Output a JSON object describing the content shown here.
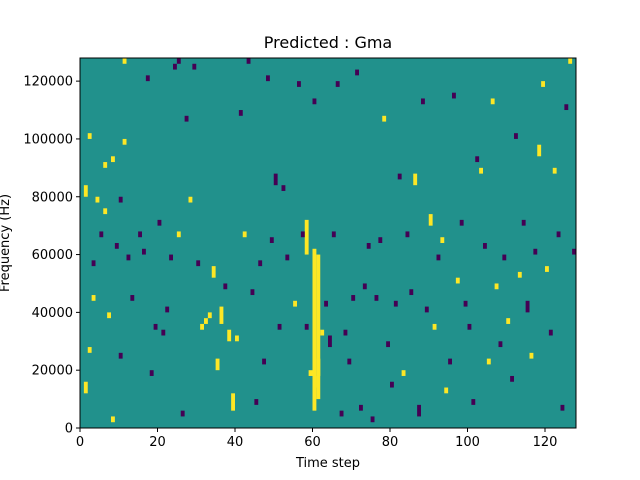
{
  "chart_data": {
    "type": "heatmap",
    "title": "Predicted : Gma",
    "xlabel": "Time step",
    "ylabel": "Frequency (Hz)",
    "xlim": [
      0,
      128
    ],
    "ylim": [
      0,
      128000
    ],
    "xticks": [
      0,
      20,
      40,
      60,
      80,
      100,
      120
    ],
    "yticks": [
      0,
      20000,
      40000,
      60000,
      80000,
      100000,
      120000
    ],
    "grid": false,
    "legend": "none",
    "n_time_steps": 128,
    "n_freq_bins": 64,
    "bin_height_hz": 2000,
    "colors": {
      "background": "#21918c",
      "high": "#fde725",
      "low": "#440154"
    },
    "cells": [
      {
        "t": 1,
        "f": 80000,
        "value": "high",
        "len": 2
      },
      {
        "t": 1,
        "f": 12000,
        "value": "high",
        "len": 2
      },
      {
        "t": 2,
        "f": 100000,
        "value": "high"
      },
      {
        "t": 2,
        "f": 26000,
        "value": "high"
      },
      {
        "t": 3,
        "f": 56000,
        "value": "low"
      },
      {
        "t": 3,
        "f": 44000,
        "value": "high"
      },
      {
        "t": 4,
        "f": 78000,
        "value": "high"
      },
      {
        "t": 5,
        "f": 66000,
        "value": "low"
      },
      {
        "t": 6,
        "f": 90000,
        "value": "high"
      },
      {
        "t": 6,
        "f": 74000,
        "value": "high"
      },
      {
        "t": 7,
        "f": 38000,
        "value": "high"
      },
      {
        "t": 8,
        "f": 92000,
        "value": "high"
      },
      {
        "t": 8,
        "f": 2000,
        "value": "high"
      },
      {
        "t": 9,
        "f": 62000,
        "value": "low"
      },
      {
        "t": 10,
        "f": 78000,
        "value": "low"
      },
      {
        "t": 10,
        "f": 24000,
        "value": "low"
      },
      {
        "t": 11,
        "f": 126000,
        "value": "high"
      },
      {
        "t": 11,
        "f": 98000,
        "value": "high"
      },
      {
        "t": 12,
        "f": 58000,
        "value": "low"
      },
      {
        "t": 13,
        "f": 44000,
        "value": "low"
      },
      {
        "t": 15,
        "f": 66000,
        "value": "low"
      },
      {
        "t": 16,
        "f": 60000,
        "value": "low"
      },
      {
        "t": 17,
        "f": 120000,
        "value": "low"
      },
      {
        "t": 18,
        "f": 18000,
        "value": "low"
      },
      {
        "t": 19,
        "f": 34000,
        "value": "low"
      },
      {
        "t": 20,
        "f": 70000,
        "value": "low"
      },
      {
        "t": 21,
        "f": 32000,
        "value": "low"
      },
      {
        "t": 22,
        "f": 40000,
        "value": "low"
      },
      {
        "t": 23,
        "f": 58000,
        "value": "low"
      },
      {
        "t": 24,
        "f": 124000,
        "value": "low"
      },
      {
        "t": 25,
        "f": 126000,
        "value": "low"
      },
      {
        "t": 25,
        "f": 66000,
        "value": "high"
      },
      {
        "t": 26,
        "f": 4000,
        "value": "low"
      },
      {
        "t": 27,
        "f": 106000,
        "value": "low"
      },
      {
        "t": 28,
        "f": 78000,
        "value": "high"
      },
      {
        "t": 29,
        "f": 124000,
        "value": "low"
      },
      {
        "t": 30,
        "f": 56000,
        "value": "low"
      },
      {
        "t": 31,
        "f": 34000,
        "value": "high"
      },
      {
        "t": 32,
        "f": 36000,
        "value": "high"
      },
      {
        "t": 33,
        "f": 38000,
        "value": "high"
      },
      {
        "t": 34,
        "f": 52000,
        "value": "high",
        "len": 2
      },
      {
        "t": 35,
        "f": 20000,
        "value": "high",
        "len": 2
      },
      {
        "t": 36,
        "f": 36000,
        "value": "high",
        "len": 3
      },
      {
        "t": 37,
        "f": 48000,
        "value": "low"
      },
      {
        "t": 38,
        "f": 30000,
        "value": "high",
        "len": 2
      },
      {
        "t": 39,
        "f": 6000,
        "value": "high",
        "len": 3
      },
      {
        "t": 40,
        "f": 30000,
        "value": "high"
      },
      {
        "t": 41,
        "f": 108000,
        "value": "low"
      },
      {
        "t": 42,
        "f": 66000,
        "value": "high"
      },
      {
        "t": 43,
        "f": 126000,
        "value": "low"
      },
      {
        "t": 44,
        "f": 46000,
        "value": "low"
      },
      {
        "t": 45,
        "f": 8000,
        "value": "low"
      },
      {
        "t": 46,
        "f": 56000,
        "value": "low"
      },
      {
        "t": 47,
        "f": 22000,
        "value": "low"
      },
      {
        "t": 48,
        "f": 120000,
        "value": "low"
      },
      {
        "t": 49,
        "f": 64000,
        "value": "low"
      },
      {
        "t": 50,
        "f": 84000,
        "value": "low",
        "len": 2
      },
      {
        "t": 51,
        "f": 34000,
        "value": "low"
      },
      {
        "t": 52,
        "f": 82000,
        "value": "low"
      },
      {
        "t": 53,
        "f": 58000,
        "value": "low"
      },
      {
        "t": 55,
        "f": 42000,
        "value": "high"
      },
      {
        "t": 56,
        "f": 118000,
        "value": "low"
      },
      {
        "t": 57,
        "f": 66000,
        "value": "low"
      },
      {
        "t": 58,
        "f": 34000,
        "value": "low"
      },
      {
        "t": 59,
        "f": 18000,
        "value": "high"
      },
      {
        "t": 60,
        "f": 112000,
        "value": "low"
      },
      {
        "t": 60,
        "f": 14000,
        "value": "high",
        "len": 2
      },
      {
        "t": 61,
        "f": 18000,
        "value": "high",
        "len": 3
      },
      {
        "t": 62,
        "f": 32000,
        "value": "high"
      },
      {
        "t": 63,
        "f": 42000,
        "value": "low"
      },
      {
        "t": 64,
        "f": 28000,
        "value": "low",
        "len": 2
      },
      {
        "t": 65,
        "f": 66000,
        "value": "low"
      },
      {
        "t": 66,
        "f": 118000,
        "value": "low"
      },
      {
        "t": 67,
        "f": 4000,
        "value": "low"
      },
      {
        "t": 68,
        "f": 32000,
        "value": "low"
      },
      {
        "t": 69,
        "f": 22000,
        "value": "low"
      },
      {
        "t": 70,
        "f": 44000,
        "value": "low"
      },
      {
        "t": 71,
        "f": 122000,
        "value": "low"
      },
      {
        "t": 72,
        "f": 6000,
        "value": "low"
      },
      {
        "t": 73,
        "f": 48000,
        "value": "low"
      },
      {
        "t": 74,
        "f": 62000,
        "value": "low"
      },
      {
        "t": 75,
        "f": 2000,
        "value": "low"
      },
      {
        "t": 76,
        "f": 44000,
        "value": "low"
      },
      {
        "t": 77,
        "f": 64000,
        "value": "low"
      },
      {
        "t": 78,
        "f": 106000,
        "value": "high"
      },
      {
        "t": 79,
        "f": 28000,
        "value": "low"
      },
      {
        "t": 80,
        "f": 14000,
        "value": "low"
      },
      {
        "t": 81,
        "f": 42000,
        "value": "low"
      },
      {
        "t": 82,
        "f": 86000,
        "value": "low"
      },
      {
        "t": 83,
        "f": 18000,
        "value": "high"
      },
      {
        "t": 84,
        "f": 66000,
        "value": "low"
      },
      {
        "t": 85,
        "f": 46000,
        "value": "low"
      },
      {
        "t": 86,
        "f": 84000,
        "value": "high",
        "len": 2
      },
      {
        "t": 87,
        "f": 4000,
        "value": "low",
        "len": 2
      },
      {
        "t": 88,
        "f": 112000,
        "value": "low"
      },
      {
        "t": 89,
        "f": 40000,
        "value": "low"
      },
      {
        "t": 90,
        "f": 70000,
        "value": "high",
        "len": 2
      },
      {
        "t": 91,
        "f": 34000,
        "value": "high"
      },
      {
        "t": 92,
        "f": 58000,
        "value": "low"
      },
      {
        "t": 93,
        "f": 64000,
        "value": "high"
      },
      {
        "t": 94,
        "f": 12000,
        "value": "high"
      },
      {
        "t": 95,
        "f": 22000,
        "value": "low"
      },
      {
        "t": 96,
        "f": 114000,
        "value": "low"
      },
      {
        "t": 97,
        "f": 50000,
        "value": "high"
      },
      {
        "t": 98,
        "f": 70000,
        "value": "low"
      },
      {
        "t": 99,
        "f": 42000,
        "value": "low"
      },
      {
        "t": 100,
        "f": 34000,
        "value": "low"
      },
      {
        "t": 101,
        "f": 8000,
        "value": "low"
      },
      {
        "t": 102,
        "f": 92000,
        "value": "low"
      },
      {
        "t": 103,
        "f": 88000,
        "value": "high"
      },
      {
        "t": 104,
        "f": 62000,
        "value": "low"
      },
      {
        "t": 105,
        "f": 22000,
        "value": "high"
      },
      {
        "t": 106,
        "f": 112000,
        "value": "high"
      },
      {
        "t": 107,
        "f": 48000,
        "value": "high"
      },
      {
        "t": 108,
        "f": 28000,
        "value": "low"
      },
      {
        "t": 109,
        "f": 58000,
        "value": "low"
      },
      {
        "t": 110,
        "f": 36000,
        "value": "high"
      },
      {
        "t": 111,
        "f": 16000,
        "value": "low"
      },
      {
        "t": 112,
        "f": 100000,
        "value": "low"
      },
      {
        "t": 113,
        "f": 52000,
        "value": "high"
      },
      {
        "t": 114,
        "f": 70000,
        "value": "low"
      },
      {
        "t": 115,
        "f": 40000,
        "value": "low",
        "len": 2
      },
      {
        "t": 116,
        "f": 24000,
        "value": "high"
      },
      {
        "t": 117,
        "f": 60000,
        "value": "low"
      },
      {
        "t": 118,
        "f": 94000,
        "value": "high",
        "len": 2
      },
      {
        "t": 119,
        "f": 118000,
        "value": "high"
      },
      {
        "t": 120,
        "f": 54000,
        "value": "high"
      },
      {
        "t": 121,
        "f": 32000,
        "value": "low"
      },
      {
        "t": 122,
        "f": 88000,
        "value": "high"
      },
      {
        "t": 123,
        "f": 66000,
        "value": "low"
      },
      {
        "t": 124,
        "f": 6000,
        "value": "low"
      },
      {
        "t": 125,
        "f": 110000,
        "value": "low"
      },
      {
        "t": 126,
        "f": 126000,
        "value": "high"
      },
      {
        "t": 127,
        "f": 60000,
        "value": "low"
      }
    ],
    "bands": [
      {
        "t": 60,
        "f_from": 6000,
        "f_to": 62000,
        "value": "high"
      },
      {
        "t": 61,
        "f_from": 10000,
        "f_to": 60000,
        "value": "high"
      },
      {
        "t": 58,
        "f_from": 60000,
        "f_to": 72000,
        "value": "high"
      }
    ]
  }
}
